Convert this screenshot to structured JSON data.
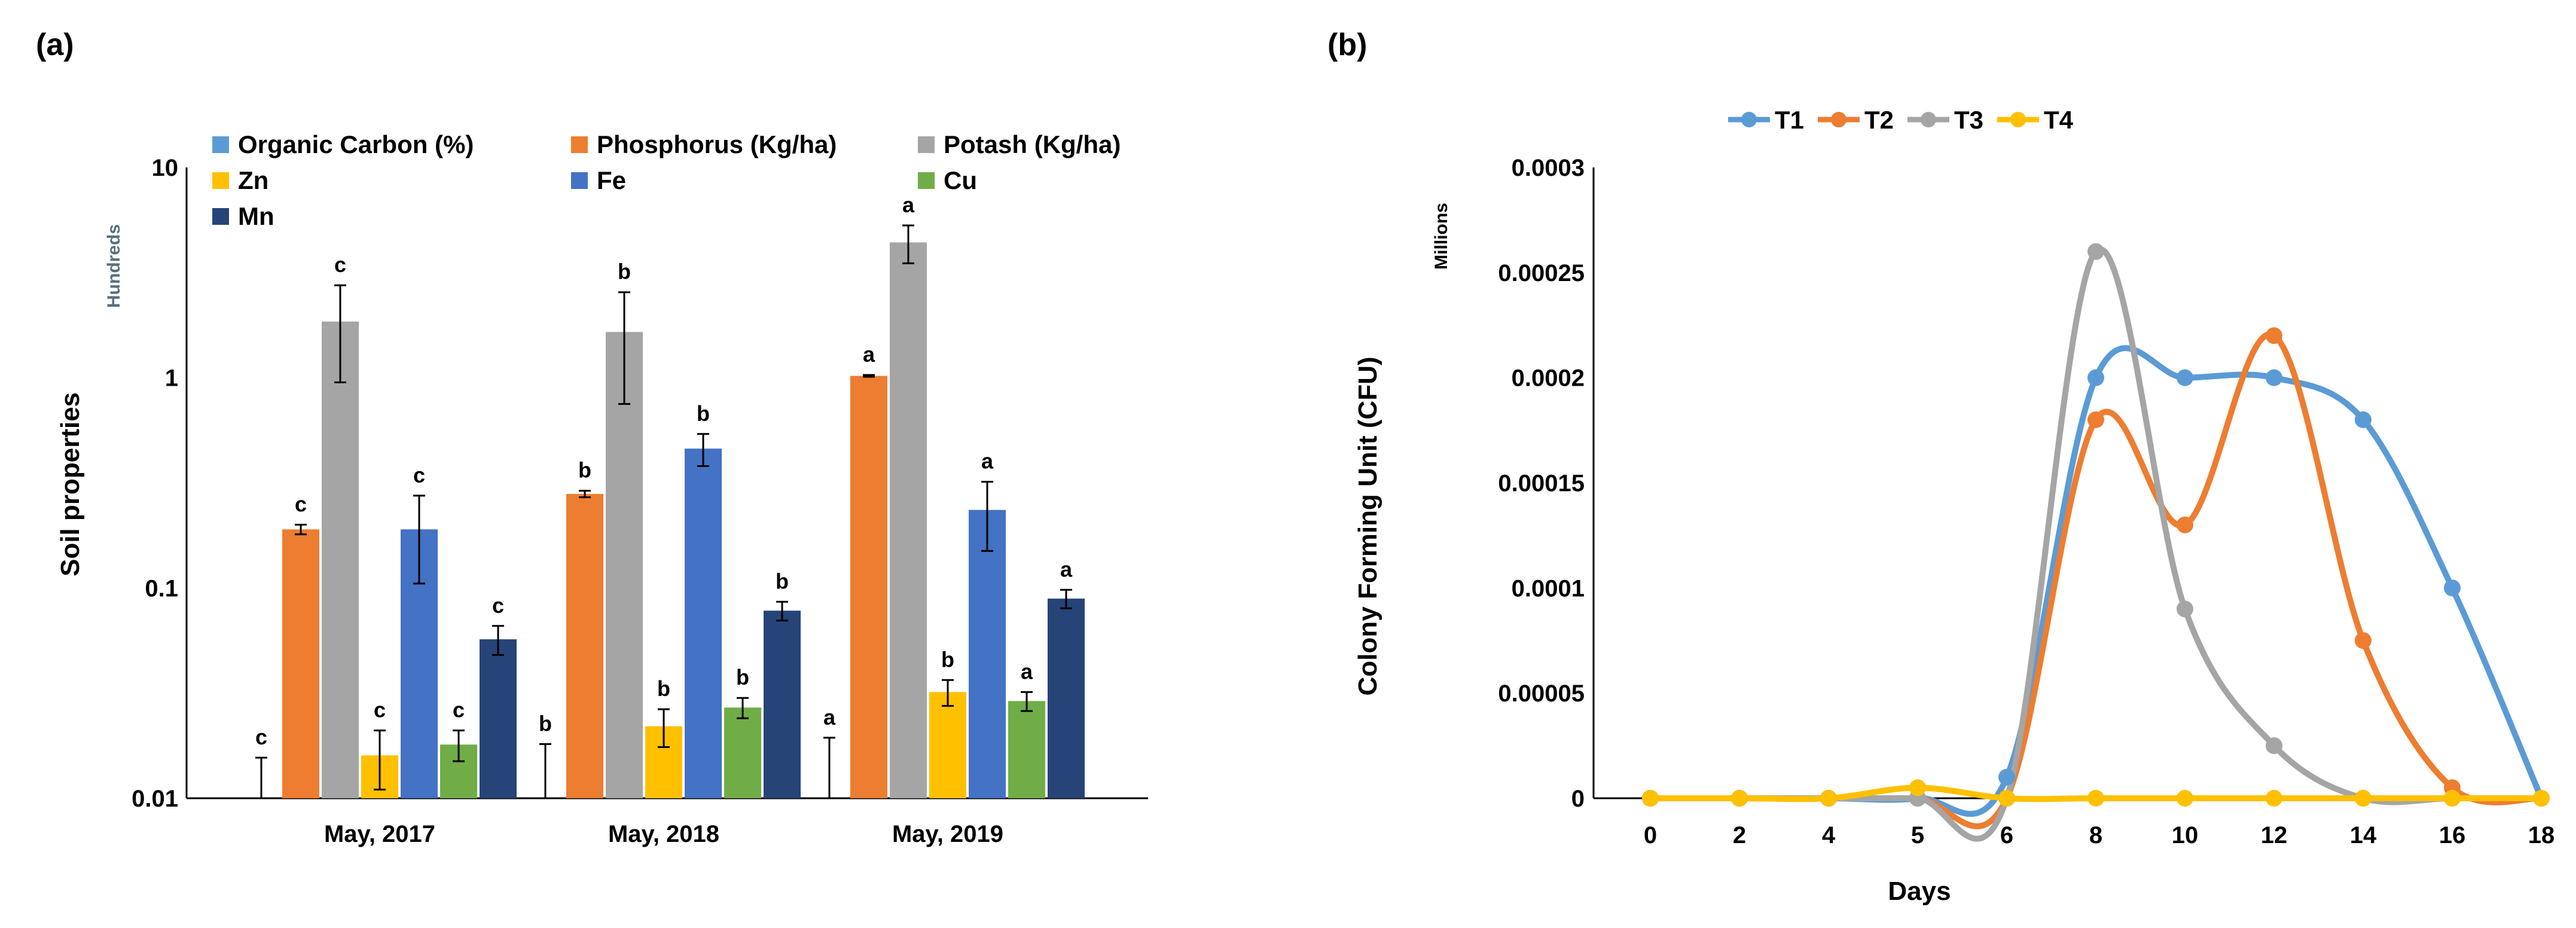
{
  "figure": {
    "colors": {
      "organic_carbon": "#5b9bd5",
      "phosphorus": "#ed7d31",
      "potash": "#a5a5a5",
      "zn": "#ffc000",
      "fe": "#4472c4",
      "cu": "#70ad47",
      "mn": "#264478",
      "t1": "#5b9bd5",
      "t2": "#ed7d31",
      "t3": "#a5a5a5",
      "t4": "#ffc000"
    }
  },
  "chart_data": [
    {
      "panel_label": "(a)",
      "type": "bar",
      "ylabel": "Soil properties",
      "unit_note": "Hundreds",
      "y_scale": "log",
      "ylim": [
        0.01,
        10
      ],
      "y_ticks": [
        "10",
        "1",
        "0.1",
        "0.01"
      ],
      "y_tick_values": [
        10,
        1,
        0.1,
        0.01
      ],
      "categories": [
        "May, 2017",
        "May, 2018",
        "May, 2019"
      ],
      "legend_position": "top",
      "series": [
        {
          "name": "Organic Carbon (%)",
          "color_key": "organic_carbon",
          "values": [
            0.0056,
            0.0061,
            0.0064
          ],
          "err": [
            0.01,
            0.012,
            0.013
          ],
          "labels": [
            "c",
            "b",
            "a"
          ]
        },
        {
          "name": "Phosphorus (Kg/ha)",
          "color_key": "phosphorus",
          "values": [
            0.19,
            0.28,
            1.02
          ],
          "err": [
            0.01,
            0.01,
            0.01
          ],
          "labels": [
            "c",
            "b",
            "a"
          ]
        },
        {
          "name": "Potash (Kg/ha)",
          "color_key": "potash",
          "values": [
            1.85,
            1.65,
            4.4
          ],
          "err": [
            0.9,
            0.9,
            0.9
          ],
          "labels": [
            "c",
            "b",
            "a"
          ]
        },
        {
          "name": "Zn",
          "color_key": "zn",
          "values": [
            0.016,
            0.022,
            0.032
          ],
          "err": [
            0.005,
            0.0045,
            0.0045
          ],
          "labels": [
            "c",
            "b",
            "b"
          ]
        },
        {
          "name": "Fe",
          "color_key": "fe",
          "values": [
            0.19,
            0.46,
            0.235
          ],
          "err": [
            0.085,
            0.08,
            0.085
          ],
          "labels": [
            "c",
            "b",
            "a"
          ]
        },
        {
          "name": "Cu",
          "color_key": "cu",
          "values": [
            0.018,
            0.027,
            0.029
          ],
          "err": [
            0.003,
            0.003,
            0.003
          ],
          "labels": [
            "c",
            "b",
            "a"
          ]
        },
        {
          "name": "Mn",
          "color_key": "mn",
          "values": [
            0.057,
            0.078,
            0.089
          ],
          "err": [
            0.009,
            0.008,
            0.009
          ],
          "labels": [
            "c",
            "b",
            "a"
          ]
        }
      ]
    },
    {
      "panel_label": "(b)",
      "type": "line",
      "xlabel": "Days",
      "ylabel": "Colony Forming Unit (CFU)",
      "unit_note": "Millions",
      "ylim": [
        0,
        0.0003
      ],
      "y_ticks": [
        "0",
        "0.00005",
        "0.0001",
        "0.00015",
        "0.0002",
        "0.00025",
        "0.0003"
      ],
      "y_tick_values": [
        0,
        5e-05,
        0.0001,
        0.00015,
        0.0002,
        0.00025,
        0.0003
      ],
      "x": [
        "0",
        "2",
        "4",
        "5",
        "6",
        "8",
        "10",
        "12",
        "14",
        "16",
        "18"
      ],
      "legend_position": "top",
      "series": [
        {
          "name": "T1",
          "color_key": "t1",
          "values": [
            0,
            0,
            0,
            0,
            1e-05,
            0.0002,
            0.0002,
            0.0002,
            0.00018,
            0.0001,
            0
          ]
        },
        {
          "name": "T2",
          "color_key": "t2",
          "values": [
            0,
            0,
            0,
            0,
            0,
            0.00018,
            0.00013,
            0.00022,
            7.5e-05,
            5e-06,
            0
          ]
        },
        {
          "name": "T3",
          "color_key": "t3",
          "values": [
            0,
            0,
            0,
            0,
            0,
            0.00026,
            9e-05,
            2.5e-05,
            0,
            0,
            0
          ]
        },
        {
          "name": "T4",
          "color_key": "t4",
          "values": [
            0,
            0,
            0,
            5e-06,
            0,
            0,
            0,
            0,
            0,
            0,
            0
          ]
        }
      ]
    }
  ]
}
